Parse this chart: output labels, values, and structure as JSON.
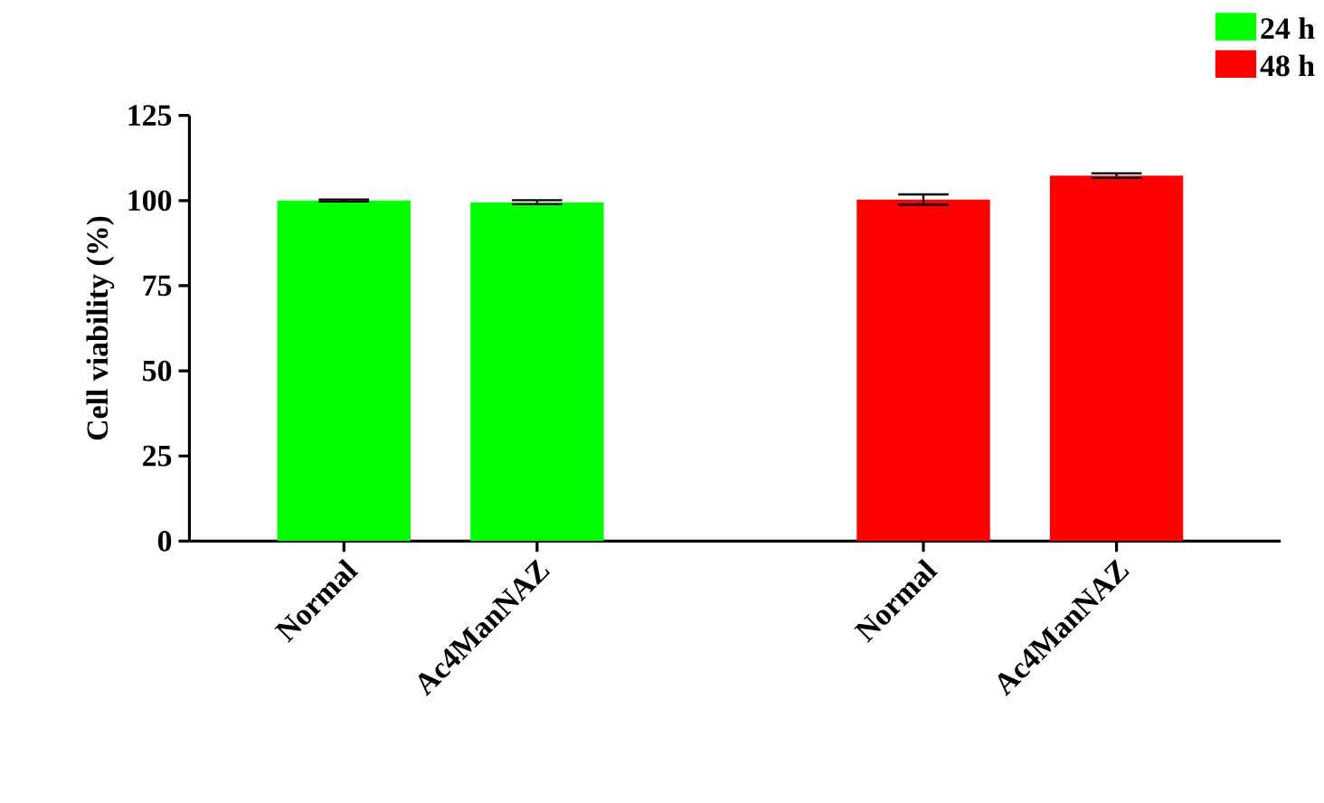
{
  "chart_data": {
    "type": "bar",
    "ylabel": "Cell viability (%)",
    "categories": [
      "Normal",
      "Ac4ManNAZ",
      null,
      "Normal",
      "Ac4ManNAZ"
    ],
    "series": [
      {
        "name": "24 h",
        "color": "#00ff00",
        "values": [
          100,
          99.5,
          null,
          null,
          null
        ],
        "errors": [
          0.3,
          0.6,
          null,
          null,
          null
        ]
      },
      {
        "name": "48 h",
        "color": "#ff0000",
        "values": [
          null,
          null,
          null,
          100.3,
          107.3
        ],
        "errors": [
          null,
          null,
          null,
          1.5,
          0.7
        ]
      }
    ],
    "ylim": [
      0,
      125
    ],
    "yticks": [
      0,
      25,
      50,
      75,
      100,
      125
    ],
    "legend": "top right"
  }
}
